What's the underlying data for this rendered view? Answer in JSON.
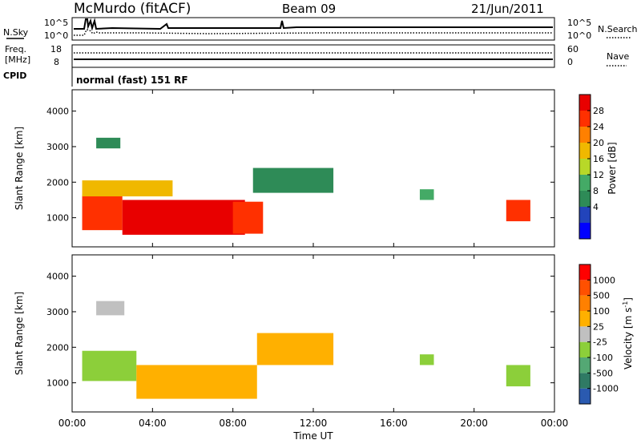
{
  "header": {
    "station": "McMurdo (fitACF)",
    "beam": "Beam 09",
    "date": "21/Jun/2011"
  },
  "noise_panel": {
    "left_label": "N.Sky",
    "left_ticks": [
      "10^5",
      "10^0"
    ],
    "right_label": "N.Search",
    "right_ticks": [
      "10^5",
      "10^0"
    ]
  },
  "freq_panel": {
    "left_label_1": "Freq.",
    "left_label_2": "[MHz]",
    "left_ticks": [
      "18",
      "8"
    ],
    "right_label": "Nave",
    "right_ticks": [
      "60",
      "0"
    ]
  },
  "cpid": {
    "label": "CPID",
    "mode": "normal (fast) 151 RF"
  },
  "x_axis": {
    "label": "Time UT",
    "ticks": [
      "00:00",
      "04:00",
      "08:00",
      "12:00",
      "16:00",
      "20:00",
      "00:00"
    ]
  },
  "y_axis": {
    "label": "Slant Range [km]",
    "ticks": [
      "4000",
      "3000",
      "2000",
      "1000"
    ]
  },
  "power_colorbar": {
    "label": "Power [dB]",
    "ticks": [
      "28",
      "24",
      "20",
      "16",
      "12",
      "8",
      "4"
    ],
    "colors": [
      "#0000ff",
      "#2244bb",
      "#2e8b57",
      "#44aa66",
      "#b8d828",
      "#f0b800",
      "#ff8000",
      "#ff3000",
      "#e80000"
    ]
  },
  "velocity_colorbar": {
    "label": "Velocity [m s",
    "label_sup": "-1",
    "label_end": "]",
    "ticks": [
      "1000",
      "500",
      "100",
      "25",
      "-25",
      "-100",
      "-500",
      "-1000"
    ],
    "colors": [
      "#2a5ab0",
      "#2f7a64",
      "#54a874",
      "#8ccf3a",
      "#c0c0c0",
      "#ffb000",
      "#ff8000",
      "#ff5000",
      "#ff0000"
    ]
  },
  "chart_data": [
    {
      "type": "heatmap",
      "title": "Power",
      "xlabel": "Time UT",
      "ylabel": "Slant Range [km]",
      "xlim": [
        0,
        24
      ],
      "ylim": [
        180,
        4600
      ],
      "colorbar": {
        "label": "Power [dB]",
        "min": 0,
        "max": 32
      },
      "regions": [
        {
          "t": [
            0.5,
            2.5
          ],
          "range": [
            650,
            1650
          ],
          "value": 28
        },
        {
          "t": [
            2.5,
            8.6
          ],
          "range": [
            520,
            1500
          ],
          "value": 30
        },
        {
          "t": [
            0.5,
            5.0
          ],
          "range": [
            1600,
            2050
          ],
          "value": 20
        },
        {
          "t": [
            8.0,
            9.5
          ],
          "range": [
            550,
            1450
          ],
          "value": 27
        },
        {
          "t": [
            9.0,
            13.0
          ],
          "range": [
            1700,
            2400
          ],
          "value": 8
        },
        {
          "t": [
            1.2,
            2.4
          ],
          "range": [
            2950,
            3250
          ],
          "value": 10
        },
        {
          "t": [
            17.3,
            18.0
          ],
          "range": [
            1500,
            1800
          ],
          "value": 12
        },
        {
          "t": [
            21.6,
            22.8
          ],
          "range": [
            900,
            1500
          ],
          "value": 28
        }
      ]
    },
    {
      "type": "heatmap",
      "title": "Velocity",
      "xlabel": "Time UT",
      "ylabel": "Slant Range [km]",
      "xlim": [
        0,
        24
      ],
      "ylim": [
        180,
        4600
      ],
      "colorbar": {
        "label": "Velocity [m s-1]",
        "min": -1000,
        "max": 1000
      },
      "regions": [
        {
          "t": [
            0.5,
            3.2
          ],
          "range": [
            1050,
            1900
          ],
          "value": -300
        },
        {
          "t": [
            3.2,
            9.2
          ],
          "range": [
            550,
            1500
          ],
          "value": 300
        },
        {
          "t": [
            9.2,
            13.0
          ],
          "range": [
            1500,
            2400
          ],
          "value": 150
        },
        {
          "t": [
            1.2,
            2.6
          ],
          "range": [
            2900,
            3300
          ],
          "value": 0
        },
        {
          "t": [
            17.3,
            18.0
          ],
          "range": [
            1500,
            1800
          ],
          "value": -300
        },
        {
          "t": [
            21.6,
            22.8
          ],
          "range": [
            900,
            1500
          ],
          "value": -300
        }
      ]
    }
  ]
}
